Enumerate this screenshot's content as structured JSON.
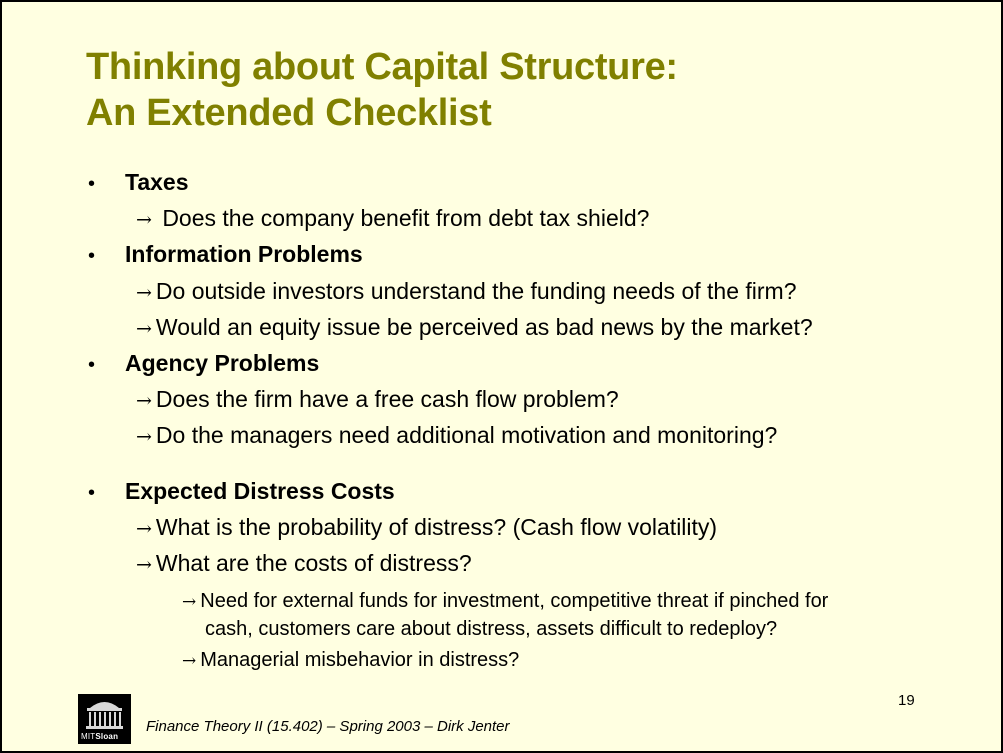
{
  "slide": {
    "title_line1": "Thinking about Capital Structure:",
    "title_line2": "An Extended Checklist",
    "bullet_glyph": "•",
    "arrow_glyph": "→",
    "items": [
      {
        "heading": "Taxes",
        "points": [
          "Does the company benefit from debt tax shield?"
        ]
      },
      {
        "heading": "Information Problems",
        "points": [
          "Do outside investors understand the funding needs of the firm?",
          "Would an equity issue be perceived as bad news by the market?"
        ]
      },
      {
        "heading": "Agency Problems",
        "points": [
          "Does the firm have a free cash flow problem?",
          "Do the managers need additional motivation and monitoring?"
        ]
      },
      {
        "heading": "Expected Distress Costs",
        "points": [
          "What is the probability of distress? (Cash flow volatility)",
          "What are the costs of distress?"
        ],
        "subpoints": [
          {
            "line1": "Need for external funds for investment, competitive threat if pinched for",
            "line2": "cash,  customers care about distress, assets difficult to redeploy?"
          },
          {
            "line1": "Managerial misbehavior in distress?"
          }
        ]
      }
    ],
    "page_number": "19",
    "footer": "Finance Theory II (15.402) – Spring 2003 – Dirk Jenter",
    "logo_text_mit": "MIT",
    "logo_text_sloan": "Sloan"
  }
}
